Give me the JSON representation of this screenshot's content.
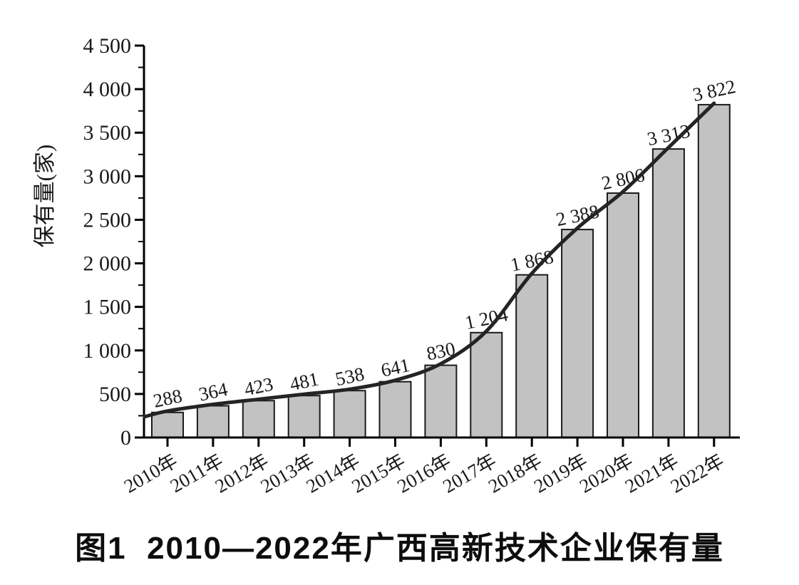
{
  "figure": {
    "caption": "图1  2010—2022年广西高新技术企业保有量"
  },
  "chart_data": {
    "type": "bar+line",
    "categories": [
      "2010年",
      "2011年",
      "2012年",
      "2013年",
      "2014年",
      "2015年",
      "2016年",
      "2017年",
      "2018年",
      "2019年",
      "2020年",
      "2021年",
      "2022年"
    ],
    "values": [
      288,
      364,
      423,
      481,
      538,
      641,
      830,
      1204,
      1868,
      2388,
      2806,
      3313,
      3822
    ],
    "value_labels": [
      "288",
      "364",
      "423",
      "481",
      "538",
      "641",
      "830",
      "1 204",
      "1 868",
      "2 388",
      "2 806",
      "3 313",
      "3 822"
    ],
    "title": "图1  2010—2022年广西高新技术企业保有量",
    "xlabel": "",
    "ylabel": "保有量(家)",
    "ylim": [
      0,
      4500
    ],
    "ytick_interval": 500,
    "yminor_tick_interval": 250,
    "ytick_labels": [
      "0",
      "500",
      "1 000",
      "1 500",
      "2 000",
      "2 500",
      "3 000",
      "3 500",
      "4 000",
      "4 500"
    ],
    "grid": false,
    "legend": false,
    "colors": {
      "bar_fill": "#c2c2c2",
      "bar_stroke": "#1b1b1b",
      "line": "#242424",
      "axis": "#000000",
      "text": "#1a1a1a"
    }
  }
}
